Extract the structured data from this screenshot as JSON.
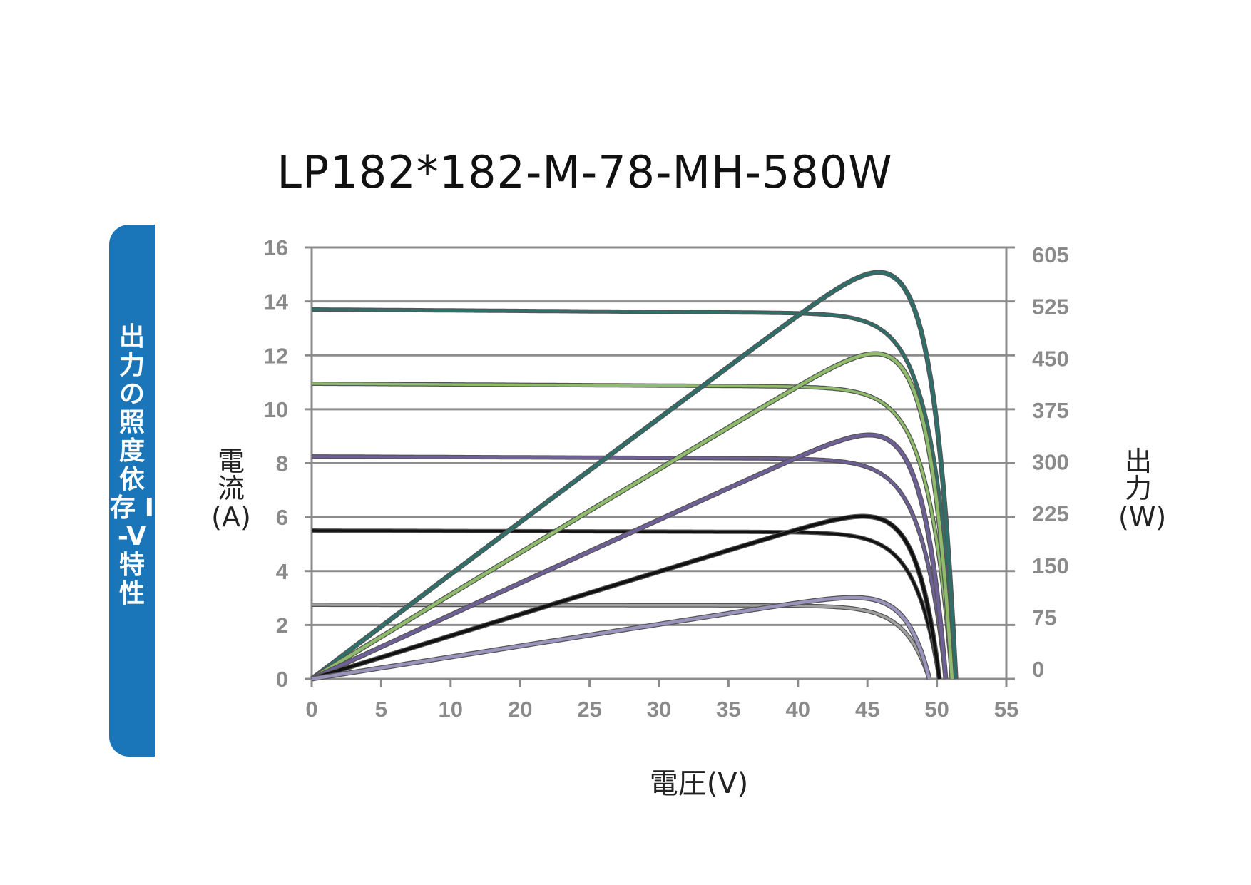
{
  "title": "LP182*182-M-78-MH-580W",
  "side_label": "出力の照度依存 I-V 特性",
  "y_left_axis": {
    "label": "電流",
    "unit": "(A)"
  },
  "y_right_axis": {
    "label": "出力",
    "unit": "(W)"
  },
  "x_axis": {
    "label": "電圧(V)"
  },
  "colors": {
    "tab": "#1a76b8",
    "grid": "#8c8c8c",
    "ticks": "#8a8a8a"
  },
  "chart_data": {
    "type": "line",
    "title": "LP182*182-M-78-MH-580W",
    "xlabel": "電圧(V)",
    "ylabel": "電流(A)",
    "y2label": "出力(W)",
    "x_ticks": [
      "0",
      "5",
      "10",
      "20",
      "25",
      "30",
      "35",
      "40",
      "45",
      "50",
      "55"
    ],
    "y_ticks": [
      "0",
      "2",
      "4",
      "6",
      "8",
      "10",
      "12",
      "14",
      "16"
    ],
    "y2_ticks": [
      "0",
      "75",
      "150",
      "225",
      "300",
      "375",
      "450",
      "525",
      "605"
    ],
    "xlim": [
      0,
      55
    ],
    "ylim": [
      0,
      16
    ],
    "y2lim": [
      0,
      605
    ],
    "grid": "horizontal",
    "series": [
      {
        "kind": "current",
        "isc": 13.7,
        "voc": 51.0,
        "color": "#2e6f6a",
        "pmax_v": 42.5,
        "pmax": 570
      },
      {
        "kind": "current",
        "isc": 10.95,
        "voc": 50.7,
        "color": "#8fbc6a",
        "pmax_v": 42.5,
        "pmax": 456
      },
      {
        "kind": "current",
        "isc": 8.25,
        "voc": 50.2,
        "color": "#6e5f96",
        "pmax_v": 42.5,
        "pmax": 342
      },
      {
        "kind": "current",
        "isc": 5.5,
        "voc": 49.7,
        "color": "#111111",
        "pmax_v": 42.5,
        "pmax": 228
      },
      {
        "kind": "current",
        "isc": 2.75,
        "voc": 48.9,
        "color": "#a0a0a0",
        "pmax_v": 42.5,
        "pmax": 114
      },
      {
        "kind": "power",
        "color": "#2e6f6a",
        "pmax": 570,
        "voc": 51.0
      },
      {
        "kind": "power",
        "color": "#8fbc6a",
        "pmax": 456,
        "voc": 50.7
      },
      {
        "kind": "power",
        "color": "#6e5f96",
        "pmax": 342,
        "voc": 50.2
      },
      {
        "kind": "power",
        "color": "#111111",
        "pmax": 228,
        "voc": 49.7
      },
      {
        "kind": "power",
        "color": "#9a94bd",
        "pmax": 114,
        "voc": 48.9
      }
    ]
  }
}
